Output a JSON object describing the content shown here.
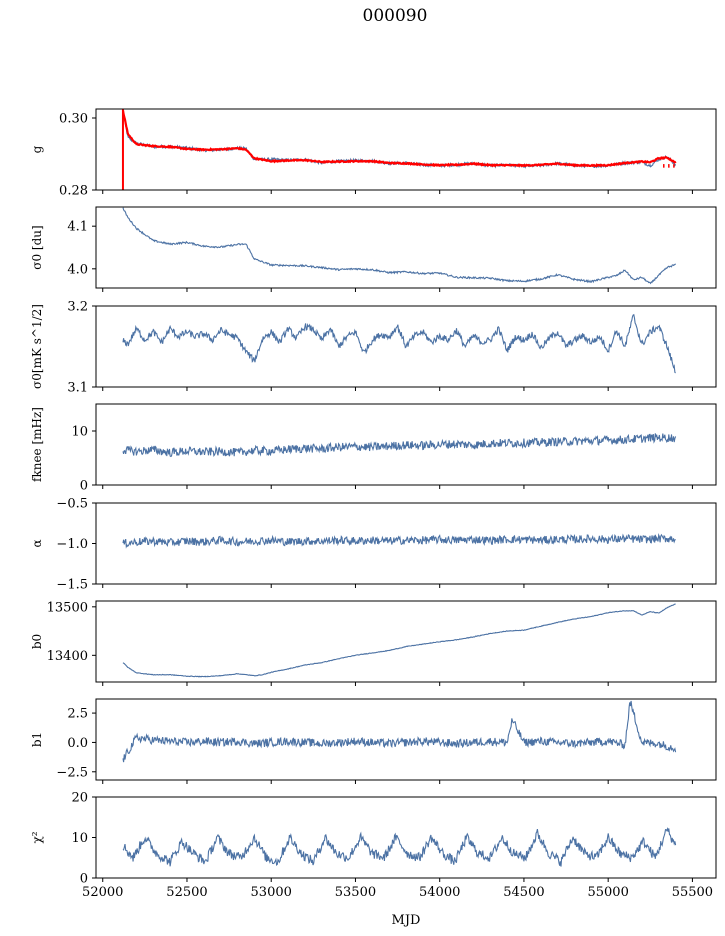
{
  "figure": {
    "title": "000090",
    "xlabel": "MJD",
    "xlim": [
      51960,
      55640
    ],
    "xticks": [
      52000,
      52500,
      53000,
      53500,
      54000,
      54500,
      55000,
      55500
    ],
    "xtick_labels": [
      "52000",
      "52500",
      "53000",
      "53500",
      "54000",
      "54500",
      "55000",
      "55500"
    ]
  },
  "colors": {
    "series": "#4c72a4",
    "overlay": "#ff0000"
  },
  "chart_data": [
    {
      "type": "line",
      "id": "g",
      "ylabel": "g",
      "ylim": [
        0.28,
        0.3025
      ],
      "yticks": [
        0.28,
        0.3
      ],
      "ytick_labels": [
        "0.28",
        "0.30"
      ],
      "series": [
        {
          "x": [
            52120,
            52150,
            52200,
            52300,
            52400,
            52500,
            52600,
            52700,
            52800,
            52850,
            52900,
            53000,
            53100,
            53200,
            53300,
            53400,
            53500,
            53600,
            53700,
            53800,
            53900,
            54000,
            54100,
            54200,
            54300,
            54400,
            54500,
            54600,
            54700,
            54800,
            54900,
            55000,
            55100,
            55200,
            55250,
            55300,
            55350,
            55400
          ],
          "y": [
            0.3015,
            0.2945,
            0.293,
            0.292,
            0.2921,
            0.2917,
            0.291,
            0.2912,
            0.2916,
            0.2915,
            0.2885,
            0.2885,
            0.2883,
            0.2885,
            0.2875,
            0.288,
            0.2882,
            0.2881,
            0.2874,
            0.2875,
            0.287,
            0.2868,
            0.287,
            0.2874,
            0.2868,
            0.287,
            0.2866,
            0.2868,
            0.2874,
            0.2868,
            0.2866,
            0.2868,
            0.2875,
            0.2877,
            0.2868,
            0.2885,
            0.2892,
            0.287
          ]
        }
      ],
      "overlay": {
        "x": [
          52120,
          52150,
          52200,
          52300,
          52400,
          52500,
          52600,
          52700,
          52800,
          52850,
          52900,
          53000,
          53100,
          53200,
          53300,
          53400,
          53500,
          53600,
          53700,
          53800,
          53900,
          54000,
          54100,
          54200,
          54300,
          54400,
          54500,
          54600,
          54700,
          54800,
          54900,
          55000,
          55100,
          55200,
          55250,
          55300,
          55350,
          55400
        ],
        "y": [
          0.302,
          0.2955,
          0.2927,
          0.2922,
          0.292,
          0.2914,
          0.2912,
          0.2913,
          0.2916,
          0.2912,
          0.2888,
          0.288,
          0.2882,
          0.2883,
          0.2878,
          0.2879,
          0.288,
          0.288,
          0.2875,
          0.2874,
          0.2871,
          0.2869,
          0.287,
          0.2873,
          0.2869,
          0.2869,
          0.2868,
          0.287,
          0.2873,
          0.2869,
          0.2868,
          0.2869,
          0.2875,
          0.2879,
          0.2877,
          0.2888,
          0.289,
          0.2876
        ]
      }
    },
    {
      "type": "line",
      "id": "sigma-du",
      "ylabel": "σ0 [du]",
      "ylim": [
        3.955,
        4.145
      ],
      "yticks": [
        4.0,
        4.1
      ],
      "ytick_labels": [
        "4.0",
        "4.1"
      ],
      "series": [
        {
          "x": [
            52120,
            52150,
            52200,
            52300,
            52400,
            52500,
            52600,
            52700,
            52800,
            52850,
            52900,
            53000,
            53100,
            53200,
            53300,
            53400,
            53500,
            53600,
            53700,
            53800,
            53900,
            54000,
            54100,
            54200,
            54300,
            54400,
            54500,
            54600,
            54700,
            54800,
            54900,
            55000,
            55050,
            55100,
            55150,
            55200,
            55250,
            55300,
            55350,
            55400
          ],
          "y": [
            4.142,
            4.12,
            4.095,
            4.066,
            4.058,
            4.062,
            4.053,
            4.051,
            4.057,
            4.058,
            4.023,
            4.009,
            4.008,
            4.007,
            4.003,
            3.998,
            4.0,
            3.998,
            3.991,
            3.993,
            3.989,
            3.99,
            3.98,
            3.979,
            3.978,
            3.972,
            3.971,
            3.976,
            3.986,
            3.975,
            3.97,
            3.98,
            3.984,
            3.997,
            3.974,
            3.98,
            3.965,
            3.985,
            4.003,
            4.01
          ]
        }
      ]
    },
    {
      "type": "line",
      "id": "sigma-mk",
      "ylabel": "σ0[mK s^1/2]",
      "ylim": [
        3.1,
        3.2
      ],
      "yticks": [
        3.1,
        3.2
      ],
      "ytick_labels": [
        "3.1",
        "3.2"
      ],
      "series": [
        {
          "x": [
            52120,
            52150,
            52200,
            52250,
            52300,
            52350,
            52400,
            52450,
            52500,
            52550,
            52600,
            52650,
            52700,
            52750,
            52800,
            52850,
            52900,
            52950,
            53000,
            53050,
            53100,
            53150,
            53200,
            53250,
            53300,
            53350,
            53400,
            53450,
            53500,
            53550,
            53600,
            53650,
            53700,
            53750,
            53800,
            53850,
            53900,
            53950,
            54000,
            54050,
            54100,
            54150,
            54200,
            54250,
            54300,
            54350,
            54400,
            54450,
            54500,
            54550,
            54600,
            54650,
            54700,
            54750,
            54800,
            54850,
            54900,
            54950,
            55000,
            55050,
            55100,
            55150,
            55200,
            55250,
            55300,
            55350,
            55400
          ],
          "y": [
            3.157,
            3.153,
            3.172,
            3.158,
            3.168,
            3.155,
            3.172,
            3.162,
            3.168,
            3.162,
            3.166,
            3.158,
            3.17,
            3.165,
            3.16,
            3.144,
            3.132,
            3.16,
            3.168,
            3.155,
            3.172,
            3.16,
            3.175,
            3.171,
            3.158,
            3.172,
            3.15,
            3.162,
            3.168,
            3.142,
            3.158,
            3.165,
            3.162,
            3.175,
            3.15,
            3.163,
            3.168,
            3.155,
            3.163,
            3.158,
            3.17,
            3.15,
            3.163,
            3.155,
            3.158,
            3.172,
            3.145,
            3.162,
            3.158,
            3.166,
            3.148,
            3.16,
            3.168,
            3.15,
            3.158,
            3.163,
            3.155,
            3.162,
            3.145,
            3.17,
            3.15,
            3.188,
            3.152,
            3.168,
            3.175,
            3.15,
            3.118
          ]
        }
      ]
    },
    {
      "type": "line",
      "id": "fknee",
      "ylabel": "fknee [mHz]",
      "ylim": [
        0,
        15
      ],
      "yticks": [
        0,
        10
      ],
      "ytick_labels": [
        "0",
        "10"
      ],
      "series": [
        {
          "x": [
            52120,
            52200,
            52300,
            52400,
            52500,
            52600,
            52700,
            52800,
            52900,
            53000,
            53100,
            53200,
            53300,
            53400,
            53500,
            53600,
            53700,
            53800,
            53900,
            54000,
            54100,
            54200,
            54300,
            54400,
            54500,
            54600,
            54700,
            54800,
            54900,
            55000,
            55100,
            55200,
            55300,
            55400
          ],
          "y": [
            6.5,
            6.2,
            6.5,
            6.0,
            6.3,
            6.1,
            6.2,
            6.0,
            6.4,
            6.3,
            6.6,
            6.8,
            6.7,
            7.0,
            7.1,
            7.0,
            7.2,
            7.4,
            7.3,
            7.5,
            7.6,
            7.4,
            7.7,
            7.8,
            7.8,
            7.9,
            8.0,
            8.1,
            8.2,
            8.3,
            8.4,
            8.6,
            8.8,
            8.7
          ]
        }
      ]
    },
    {
      "type": "line",
      "id": "alpha",
      "ylabel": "α",
      "ylim": [
        -1.5,
        -0.5
      ],
      "yticks": [
        -1.5,
        -1.0,
        -0.5
      ],
      "ytick_labels": [
        "−1.5",
        "−1.0",
        "−0.5"
      ],
      "series": [
        {
          "x": [
            52120,
            52200,
            52300,
            52400,
            52500,
            52600,
            52700,
            52800,
            52900,
            53000,
            53100,
            53200,
            53300,
            53400,
            53500,
            53600,
            53700,
            53800,
            53900,
            54000,
            54100,
            54200,
            54300,
            54400,
            54500,
            54600,
            54700,
            54800,
            54900,
            55000,
            55100,
            55200,
            55300,
            55400
          ],
          "y": [
            -1.0,
            -0.98,
            -0.97,
            -0.99,
            -0.97,
            -0.98,
            -0.96,
            -0.98,
            -0.97,
            -0.96,
            -0.98,
            -0.97,
            -0.97,
            -0.96,
            -0.97,
            -0.96,
            -0.97,
            -0.96,
            -0.96,
            -0.95,
            -0.96,
            -0.95,
            -0.96,
            -0.95,
            -0.95,
            -0.96,
            -0.95,
            -0.95,
            -0.94,
            -0.95,
            -0.94,
            -0.95,
            -0.94,
            -0.94
          ]
        }
      ]
    },
    {
      "type": "line",
      "id": "b0",
      "ylabel": "b0",
      "ylim": [
        13345,
        13512
      ],
      "yticks": [
        13400,
        13500
      ],
      "ytick_labels": [
        "13400",
        "13500"
      ],
      "series": [
        {
          "x": [
            52120,
            52150,
            52200,
            52300,
            52400,
            52500,
            52600,
            52700,
            52800,
            52850,
            52900,
            52950,
            53000,
            53100,
            53200,
            53300,
            53400,
            53500,
            53600,
            53700,
            53800,
            53900,
            54000,
            54100,
            54200,
            54300,
            54400,
            54500,
            54600,
            54700,
            54800,
            54900,
            55000,
            55050,
            55100,
            55150,
            55200,
            55250,
            55300,
            55350,
            55400
          ],
          "y": [
            13385,
            13375,
            13364,
            13360,
            13360,
            13357,
            13356,
            13358,
            13362,
            13360,
            13358,
            13360,
            13365,
            13372,
            13380,
            13385,
            13393,
            13400,
            13405,
            13410,
            13418,
            13423,
            13428,
            13432,
            13438,
            13445,
            13450,
            13452,
            13460,
            13468,
            13475,
            13480,
            13488,
            13490,
            13492,
            13492,
            13483,
            13490,
            13487,
            13498,
            13506
          ]
        }
      ]
    },
    {
      "type": "line",
      "id": "b1",
      "ylabel": "b1",
      "ylim": [
        -3.2,
        3.7
      ],
      "yticks": [
        -2.5,
        0.0,
        2.5
      ],
      "ytick_labels": [
        "−2.5",
        "0.0",
        "2.5"
      ],
      "series": [
        {
          "x": [
            52120,
            52200,
            52300,
            52400,
            52500,
            52600,
            52700,
            52800,
            52900,
            53000,
            53100,
            53200,
            53300,
            53400,
            53500,
            53600,
            53700,
            53800,
            53900,
            54000,
            54100,
            54200,
            54300,
            54400,
            54430,
            54500,
            54600,
            54700,
            54800,
            54900,
            55000,
            55100,
            55130,
            55200,
            55300,
            55400
          ],
          "y": [
            -1.5,
            0.4,
            0.2,
            0.1,
            0.0,
            0.1,
            0.0,
            0.1,
            -0.1,
            0.0,
            0.1,
            0.0,
            -0.1,
            0.0,
            0.1,
            0.0,
            -0.1,
            0.0,
            0.1,
            0.0,
            -0.1,
            0.0,
            0.1,
            0.0,
            1.9,
            0.0,
            0.1,
            0.0,
            -0.1,
            0.0,
            0.1,
            -0.2,
            3.5,
            0.0,
            -0.1,
            -0.5
          ]
        }
      ]
    },
    {
      "type": "line",
      "id": "chi2",
      "ylabel": "χ²",
      "ylim": [
        0,
        20
      ],
      "yticks": [
        0,
        10,
        20
      ],
      "ytick_labels": [
        "0",
        "10",
        "20"
      ],
      "series": [
        {
          "x": [
            52120,
            52180,
            52250,
            52320,
            52400,
            52470,
            52540,
            52610,
            52680,
            52750,
            52820,
            52900,
            52970,
            53040,
            53110,
            53180,
            53250,
            53320,
            53390,
            53460,
            53530,
            53600,
            53670,
            53740,
            53810,
            53880,
            53950,
            54020,
            54090,
            54160,
            54230,
            54300,
            54370,
            54440,
            54510,
            54580,
            54650,
            54720,
            54790,
            54860,
            54930,
            55000,
            55070,
            55140,
            55210,
            55280,
            55350,
            55400
          ],
          "y": [
            8,
            5,
            10,
            6,
            4,
            9,
            6,
            4,
            10,
            6,
            5,
            10,
            5,
            4,
            10,
            6,
            4,
            10,
            6,
            5,
            10,
            6,
            5,
            10,
            6,
            5,
            10,
            6,
            4,
            10,
            6,
            5,
            10,
            6,
            5,
            11,
            6,
            4,
            10,
            6,
            5,
            10,
            6,
            5,
            9,
            5,
            12,
            8
          ]
        }
      ]
    }
  ]
}
